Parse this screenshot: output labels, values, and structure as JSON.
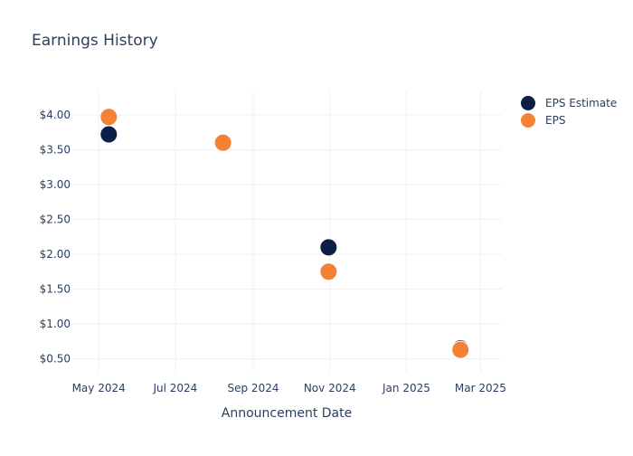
{
  "chart_data": {
    "type": "scatter",
    "title": "Earnings History",
    "xlabel": "Announcement Date",
    "ylabel": "",
    "x_axis_type": "date",
    "xlim": [
      "2024-04-10",
      "2025-03-18"
    ],
    "ylim": [
      0.3,
      4.35
    ],
    "x_ticks": [
      {
        "value": "2024-05-01",
        "label": "May 2024"
      },
      {
        "value": "2024-07-01",
        "label": "Jul 2024"
      },
      {
        "value": "2024-09-01",
        "label": "Sep 2024"
      },
      {
        "value": "2024-11-01",
        "label": "Nov 2024"
      },
      {
        "value": "2025-01-01",
        "label": "Jan 2025"
      },
      {
        "value": "2025-03-01",
        "label": "Mar 2025"
      }
    ],
    "y_ticks": [
      {
        "value": 0.5,
        "label": "$0.50"
      },
      {
        "value": 1.0,
        "label": "$1.00"
      },
      {
        "value": 1.5,
        "label": "$1.50"
      },
      {
        "value": 2.0,
        "label": "$2.00"
      },
      {
        "value": 2.5,
        "label": "$2.50"
      },
      {
        "value": 3.0,
        "label": "$3.00"
      },
      {
        "value": 3.5,
        "label": "$3.50"
      },
      {
        "value": 4.0,
        "label": "$4.00"
      }
    ],
    "grid": true,
    "legend_position": "top-right",
    "series": [
      {
        "name": "EPS Estimate",
        "color": "#0b1f44",
        "points": [
          {
            "x": "2024-05-09",
            "y": 3.72
          },
          {
            "x": "2024-08-08",
            "y": 3.59
          },
          {
            "x": "2024-10-31",
            "y": 2.1
          },
          {
            "x": "2025-02-13",
            "y": 0.65
          }
        ]
      },
      {
        "name": "EPS",
        "color": "#f58233",
        "points": [
          {
            "x": "2024-05-09",
            "y": 3.97
          },
          {
            "x": "2024-08-08",
            "y": 3.6
          },
          {
            "x": "2024-10-31",
            "y": 1.75
          },
          {
            "x": "2025-02-13",
            "y": 0.63
          }
        ]
      }
    ]
  }
}
